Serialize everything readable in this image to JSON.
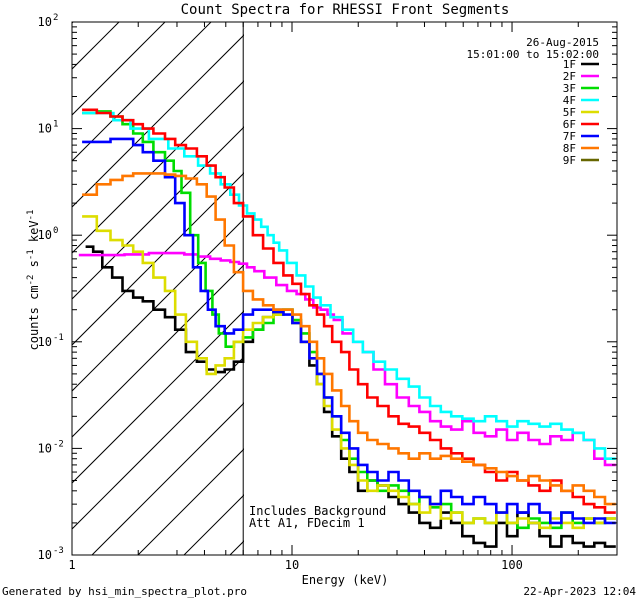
{
  "chart_data": {
    "type": "line",
    "title": "Count Spectra for RHESSI Front Segments",
    "xlabel": "Energy (keV)",
    "ylabel": "counts cm",
    "ylabel_sup1": "-2",
    "ylabel_mid": " s",
    "ylabel_sup2": "-1",
    "ylabel_end": " keV",
    "ylabel_sup3": "-1",
    "xscale": "log",
    "yscale": "log",
    "xlim": [
      1,
      300
    ],
    "ylim": [
      0.001,
      100
    ],
    "x_ticks": [
      {
        "value": 1,
        "label": "1"
      },
      {
        "value": 10,
        "label": "10"
      },
      {
        "value": 100,
        "label": "100"
      }
    ],
    "y_ticks": [
      {
        "value": 0.001,
        "base": "10",
        "exp": "-3"
      },
      {
        "value": 0.01,
        "base": "10",
        "exp": "-2"
      },
      {
        "value": 0.1,
        "base": "10",
        "exp": "-1"
      },
      {
        "value": 1,
        "base": "10",
        "exp": "0"
      },
      {
        "value": 10,
        "base": "10",
        "exp": "1"
      },
      {
        "value": 100,
        "base": "10",
        "exp": "2"
      }
    ],
    "attenuator_threshold_kev": 6,
    "legend_date": "26-Aug-2015",
    "legend_time": "15:01:00 to 15:02:00",
    "annotation_line1": "Includes Background",
    "annotation_line2": "Att A1, FDecim 1",
    "footer_left": "Generated by hsi_min_spectra_plot.pro",
    "footer_right": "22-Apr-2023 12:04",
    "series": [
      {
        "name": "1F",
        "color": "#000000",
        "x": [
          1.2,
          1.3,
          1.45,
          1.6,
          1.8,
          2.0,
          2.2,
          2.5,
          2.8,
          3.1,
          3.5,
          3.9,
          4.3,
          4.7,
          5.2,
          5.7,
          6.3,
          7.0,
          7.8,
          8.7,
          9.6,
          10.5,
          11.5,
          12.5,
          13.5,
          14.5,
          16,
          17.5,
          19,
          21,
          23,
          26,
          29,
          32,
          36,
          40,
          45,
          50,
          56,
          63,
          71,
          80,
          90,
          100,
          112,
          126,
          141,
          158,
          178,
          200,
          224,
          250,
          280
        ],
        "y": [
          0.78,
          0.7,
          0.5,
          0.4,
          0.3,
          0.26,
          0.24,
          0.2,
          0.17,
          0.13,
          0.08,
          0.065,
          0.055,
          0.052,
          0.055,
          0.065,
          0.1,
          0.13,
          0.17,
          0.2,
          0.2,
          0.15,
          0.1,
          0.06,
          0.04,
          0.022,
          0.013,
          0.008,
          0.006,
          0.004,
          0.005,
          0.0045,
          0.0035,
          0.003,
          0.0025,
          0.002,
          0.0018,
          0.0025,
          0.002,
          0.0015,
          0.0013,
          0.0012,
          0.002,
          0.0015,
          0.0025,
          0.002,
          0.0015,
          0.0012,
          0.0015,
          0.0013,
          0.0012,
          0.0013,
          0.0012
        ]
      },
      {
        "name": "2F",
        "color": "#ff00ff",
        "x": [
          1.2,
          1.5,
          2,
          2.5,
          3,
          3.5,
          4,
          4.5,
          5,
          5.5,
          6,
          6.5,
          7,
          8,
          9,
          10,
          11,
          12,
          13,
          14,
          15,
          16,
          18,
          20,
          22,
          25,
          28,
          32,
          36,
          40,
          45,
          50,
          56,
          63,
          71,
          80,
          90,
          100,
          112,
          126,
          141,
          158,
          178,
          200,
          224,
          250,
          280
        ],
        "y": [
          0.65,
          0.65,
          0.66,
          0.68,
          0.68,
          0.66,
          0.63,
          0.6,
          0.58,
          0.56,
          0.54,
          0.5,
          0.46,
          0.4,
          0.34,
          0.3,
          0.28,
          0.25,
          0.21,
          0.2,
          0.18,
          0.16,
          0.12,
          0.1,
          0.08,
          0.055,
          0.04,
          0.03,
          0.025,
          0.022,
          0.018,
          0.016,
          0.015,
          0.018,
          0.014,
          0.013,
          0.015,
          0.012,
          0.014,
          0.012,
          0.011,
          0.013,
          0.012,
          0.014,
          0.012,
          0.008,
          0.007
        ]
      },
      {
        "name": "3F",
        "color": "#00dd00",
        "x": [
          1.2,
          1.4,
          1.6,
          1.8,
          2.0,
          2.2,
          2.5,
          2.8,
          3.0,
          3.3,
          3.6,
          3.9,
          4.2,
          4.5,
          4.8,
          5.2,
          5.7,
          6.3,
          7.0,
          7.8,
          8.7,
          9.6,
          10.5,
          11.5,
          12.5,
          13.5,
          14.5,
          16,
          17.5,
          19,
          21,
          23,
          26,
          29,
          32,
          36,
          40,
          45,
          50,
          56,
          63,
          71,
          80,
          90,
          100,
          112,
          126,
          141,
          158,
          178,
          200,
          224,
          250,
          280
        ],
        "y": [
          14,
          14.5,
          13,
          11,
          9,
          7.5,
          6,
          5,
          4,
          2.5,
          1.0,
          0.55,
          0.3,
          0.18,
          0.12,
          0.09,
          0.1,
          0.11,
          0.13,
          0.15,
          0.18,
          0.2,
          0.16,
          0.12,
          0.08,
          0.05,
          0.03,
          0.02,
          0.012,
          0.008,
          0.006,
          0.005,
          0.004,
          0.0045,
          0.004,
          0.003,
          0.0035,
          0.0028,
          0.003,
          0.0025,
          0.002,
          0.0022,
          0.002,
          0.0025,
          0.002,
          0.0018,
          0.0022,
          0.002,
          0.0018,
          0.0025,
          0.002,
          0.0022,
          0.002,
          0.0022
        ]
      },
      {
        "name": "4F",
        "color": "#00ffff",
        "x": [
          1.2,
          1.4,
          1.7,
          2,
          2.5,
          3,
          3.5,
          4,
          4.5,
          5,
          5.5,
          6,
          6.5,
          7,
          7.5,
          8,
          8.5,
          9,
          10,
          11,
          12,
          13,
          14,
          16,
          18,
          20,
          22,
          25,
          28,
          32,
          36,
          40,
          45,
          50,
          56,
          63,
          71,
          80,
          90,
          100,
          112,
          126,
          141,
          158,
          178,
          200,
          224,
          250,
          280
        ],
        "y": [
          14,
          14,
          12,
          10,
          8,
          6.5,
          5.5,
          4.5,
          3.8,
          3.0,
          2.4,
          1.9,
          1.6,
          1.4,
          1.2,
          1.0,
          0.85,
          0.72,
          0.55,
          0.42,
          0.33,
          0.26,
          0.22,
          0.17,
          0.13,
          0.1,
          0.08,
          0.065,
          0.055,
          0.045,
          0.038,
          0.03,
          0.025,
          0.022,
          0.02,
          0.019,
          0.018,
          0.02,
          0.018,
          0.016,
          0.018,
          0.017,
          0.016,
          0.017,
          0.015,
          0.014,
          0.012,
          0.01,
          0.008
        ]
      },
      {
        "name": "5F",
        "color": "#dddd00",
        "x": [
          1.2,
          1.4,
          1.6,
          1.8,
          2.0,
          2.2,
          2.5,
          2.8,
          3.1,
          3.5,
          3.9,
          4.3,
          4.7,
          5.2,
          5.7,
          6.3,
          7.0,
          7.8,
          8.7,
          9.6,
          10.5,
          11.5,
          12.5,
          13.5,
          14.5,
          16,
          17.5,
          19,
          21,
          23,
          26,
          29,
          32,
          36,
          40,
          45,
          50,
          56,
          63,
          71,
          80,
          90,
          100,
          112,
          126,
          141,
          158,
          178,
          200,
          224,
          250,
          280
        ],
        "y": [
          1.5,
          1.1,
          0.9,
          0.8,
          0.7,
          0.55,
          0.4,
          0.3,
          0.18,
          0.1,
          0.07,
          0.05,
          0.06,
          0.07,
          0.1,
          0.13,
          0.15,
          0.17,
          0.18,
          0.2,
          0.15,
          0.1,
          0.07,
          0.04,
          0.025,
          0.015,
          0.01,
          0.007,
          0.005,
          0.004,
          0.0045,
          0.004,
          0.0035,
          0.003,
          0.0025,
          0.003,
          0.0022,
          0.0025,
          0.002,
          0.0022,
          0.002,
          0.0025,
          0.002,
          0.0022,
          0.002,
          0.0018,
          0.0022,
          0.002,
          0.0018,
          0.0022,
          0.002,
          0.0022
        ]
      },
      {
        "name": "6F",
        "color": "#ff0000",
        "x": [
          1.2,
          1.4,
          1.6,
          1.8,
          2.0,
          2.2,
          2.5,
          2.8,
          3.1,
          3.5,
          3.9,
          4.3,
          4.7,
          5.2,
          5.7,
          6.3,
          7.0,
          7.8,
          8.7,
          9.6,
          10.5,
          11.5,
          12.5,
          13.5,
          14.5,
          16,
          17.5,
          19,
          21,
          23,
          26,
          29,
          32,
          36,
          40,
          45,
          50,
          56,
          63,
          71,
          80,
          90,
          100,
          112,
          126,
          141,
          158,
          178,
          200,
          224,
          250,
          280
        ],
        "y": [
          15,
          14,
          13,
          12,
          11,
          10,
          9,
          8,
          7,
          6.5,
          5.5,
          4.5,
          3.5,
          2.8,
          2.0,
          1.5,
          1.0,
          0.75,
          0.55,
          0.42,
          0.35,
          0.28,
          0.22,
          0.18,
          0.14,
          0.1,
          0.08,
          0.055,
          0.04,
          0.03,
          0.025,
          0.02,
          0.017,
          0.016,
          0.014,
          0.012,
          0.01,
          0.009,
          0.008,
          0.007,
          0.006,
          0.005,
          0.006,
          0.005,
          0.0045,
          0.004,
          0.005,
          0.004,
          0.0035,
          0.003,
          0.0028,
          0.0025
        ]
      },
      {
        "name": "7F",
        "color": "#0000ff",
        "x": [
          1.2,
          1.4,
          1.6,
          1.8,
          2.0,
          2.2,
          2.5,
          2.8,
          3.1,
          3.4,
          3.7,
          4.0,
          4.3,
          4.7,
          5.2,
          5.7,
          6.3,
          7.0,
          7.8,
          8.7,
          9.6,
          10.5,
          11.5,
          12.5,
          13.5,
          14.5,
          16,
          17.5,
          19,
          21,
          23,
          26,
          29,
          32,
          36,
          40,
          45,
          50,
          56,
          63,
          71,
          80,
          90,
          100,
          112,
          126,
          141,
          158,
          178,
          200,
          224,
          250,
          280
        ],
        "y": [
          7.5,
          7.5,
          8.0,
          8.0,
          7.0,
          6.0,
          5.0,
          3.5,
          2.0,
          1.0,
          0.5,
          0.3,
          0.2,
          0.14,
          0.12,
          0.13,
          0.18,
          0.2,
          0.2,
          0.19,
          0.18,
          0.15,
          0.1,
          0.07,
          0.05,
          0.03,
          0.02,
          0.014,
          0.01,
          0.007,
          0.006,
          0.005,
          0.006,
          0.005,
          0.004,
          0.0035,
          0.003,
          0.004,
          0.0035,
          0.003,
          0.0035,
          0.003,
          0.0025,
          0.003,
          0.0025,
          0.003,
          0.0025,
          0.002,
          0.0025,
          0.0022,
          0.002,
          0.0022,
          0.002
        ]
      },
      {
        "name": "8F",
        "color": "#ff7700",
        "x": [
          1.2,
          1.4,
          1.6,
          1.8,
          2.0,
          2.2,
          2.5,
          2.8,
          3.1,
          3.5,
          3.9,
          4.3,
          4.7,
          5.2,
          5.7,
          6.3,
          7.0,
          7.8,
          8.7,
          9.6,
          10.5,
          11.5,
          12.5,
          13.5,
          14.5,
          16,
          17.5,
          19,
          21,
          23,
          26,
          29,
          32,
          36,
          40,
          45,
          50,
          56,
          63,
          71,
          80,
          90,
          100,
          112,
          126,
          141,
          158,
          178,
          200,
          224,
          250,
          280
        ],
        "y": [
          2.4,
          3.0,
          3.3,
          3.6,
          3.8,
          3.8,
          3.8,
          3.7,
          3.6,
          3.4,
          3.0,
          2.3,
          1.4,
          0.8,
          0.45,
          0.3,
          0.25,
          0.22,
          0.2,
          0.2,
          0.18,
          0.14,
          0.1,
          0.07,
          0.05,
          0.035,
          0.025,
          0.018,
          0.014,
          0.012,
          0.011,
          0.01,
          0.009,
          0.008,
          0.009,
          0.008,
          0.0085,
          0.008,
          0.0075,
          0.007,
          0.0065,
          0.006,
          0.0055,
          0.005,
          0.0055,
          0.005,
          0.0045,
          0.004,
          0.0045,
          0.004,
          0.0035,
          0.003
        ]
      },
      {
        "name": "9F",
        "color": "#666600",
        "x": [],
        "y": []
      }
    ]
  }
}
